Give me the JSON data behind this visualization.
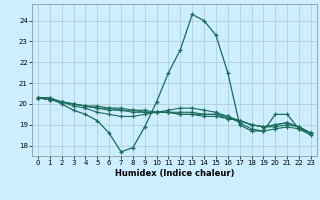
{
  "title": "",
  "xlabel": "Humidex (Indice chaleur)",
  "bg_color": "#cceeff",
  "grid_color": "#aacccc",
  "line_color": "#1a6b5a",
  "xlim": [
    -0.5,
    23.5
  ],
  "ylim": [
    17.5,
    24.8
  ],
  "yticks": [
    18,
    19,
    20,
    21,
    22,
    23,
    24
  ],
  "xticks": [
    0,
    1,
    2,
    3,
    4,
    5,
    6,
    7,
    8,
    9,
    10,
    11,
    12,
    13,
    14,
    15,
    16,
    17,
    18,
    19,
    20,
    21,
    22,
    23
  ],
  "line1": [
    20.3,
    20.3,
    20.0,
    19.7,
    19.5,
    19.2,
    18.6,
    17.7,
    17.9,
    18.9,
    20.1,
    21.5,
    22.6,
    24.3,
    24.0,
    23.3,
    21.5,
    19.0,
    18.7,
    18.7,
    19.5,
    19.5,
    18.8,
    18.5
  ],
  "line2": [
    20.3,
    20.2,
    20.1,
    20.0,
    19.9,
    19.8,
    19.7,
    19.7,
    19.6,
    19.6,
    19.6,
    19.6,
    19.6,
    19.6,
    19.5,
    19.5,
    19.4,
    19.2,
    19.0,
    18.9,
    18.9,
    19.0,
    18.9,
    18.6
  ],
  "line3": [
    20.3,
    20.2,
    20.1,
    20.0,
    19.9,
    19.8,
    19.8,
    19.7,
    19.7,
    19.6,
    19.6,
    19.6,
    19.5,
    19.5,
    19.5,
    19.5,
    19.3,
    19.2,
    19.0,
    18.9,
    19.0,
    19.1,
    18.9,
    18.6
  ],
  "line4": [
    20.3,
    20.2,
    20.1,
    20.0,
    19.9,
    19.9,
    19.8,
    19.8,
    19.7,
    19.7,
    19.6,
    19.6,
    19.5,
    19.5,
    19.4,
    19.4,
    19.3,
    19.2,
    19.0,
    18.9,
    19.0,
    19.1,
    18.9,
    18.6
  ],
  "line5": [
    20.3,
    20.3,
    20.1,
    19.9,
    19.8,
    19.6,
    19.5,
    19.4,
    19.4,
    19.5,
    19.6,
    19.7,
    19.8,
    19.8,
    19.7,
    19.6,
    19.4,
    19.1,
    18.8,
    18.7,
    18.8,
    18.9,
    18.8,
    18.6
  ]
}
